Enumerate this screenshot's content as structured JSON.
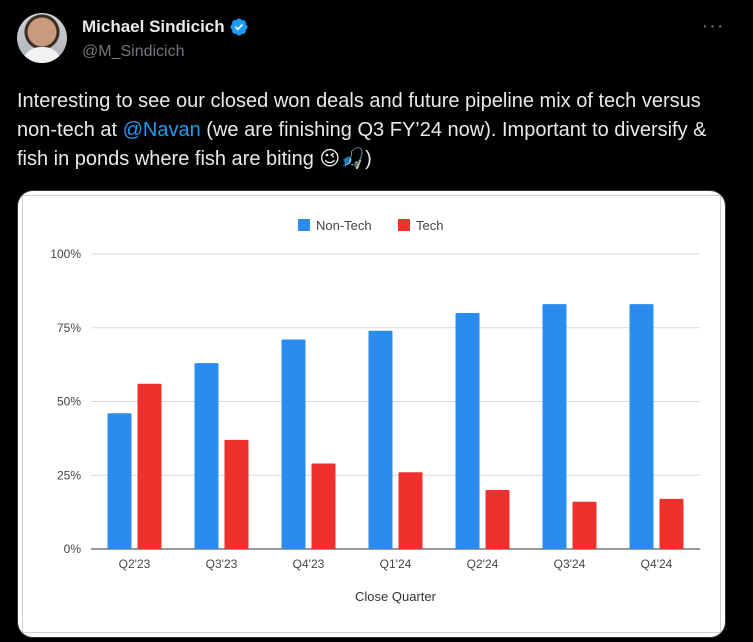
{
  "author": {
    "name": "Michael Sindicich",
    "handle": "@M_Sindicich",
    "verified": true,
    "avatar_icon": "avatar-icon"
  },
  "menu_icon": "more-options-icon",
  "tweet": {
    "text_before": "Interesting to see our closed won deals and future pipeline mix of tech versus non-tech at ",
    "mention": "@Navan",
    "text_after": " (we are finishing Q3 FY’24 now). Important to diversify & fish in ponds where fish are biting ",
    "emoji": "😉🎣",
    "text_end": ")"
  },
  "colors": {
    "non_tech": "#2b8cf0",
    "tech": "#f0302c",
    "mention": "#1d9bf0",
    "verified": "#1d9bf0"
  },
  "chart_data": {
    "type": "bar",
    "categories": [
      "Q2'23",
      "Q3'23",
      "Q4'23",
      "Q1'24",
      "Q2'24",
      "Q3'24",
      "Q4'24"
    ],
    "series": [
      {
        "name": "Non-Tech",
        "values": [
          46,
          63,
          71,
          74,
          80,
          83,
          83
        ]
      },
      {
        "name": "Tech",
        "values": [
          56,
          37,
          29,
          26,
          20,
          16,
          17
        ]
      }
    ],
    "xlabel": "Close Quarter",
    "ylabel": "",
    "ylim": [
      0,
      100
    ],
    "yticks": [
      "0%",
      "25%",
      "50%",
      "75%",
      "100%"
    ],
    "grid": true,
    "legend": "top-center"
  }
}
